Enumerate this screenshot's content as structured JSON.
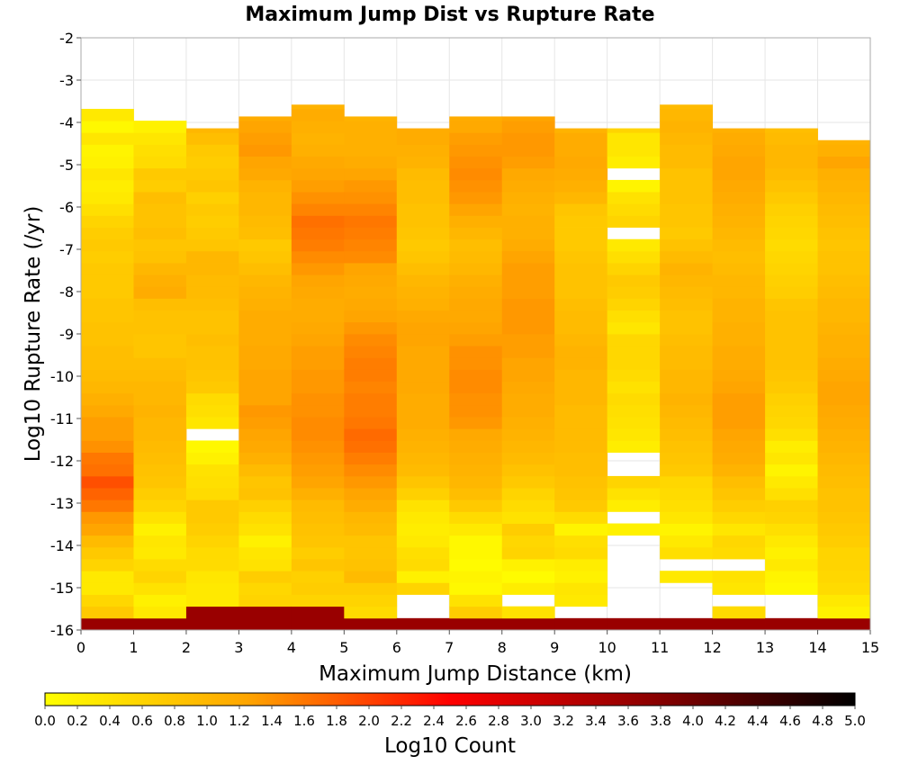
{
  "chart_data": {
    "type": "heatmap",
    "title": "Maximum Jump Dist vs Rupture Rate",
    "xlabel": "Maximum Jump Distance (km)",
    "ylabel": "Log10 Rupture Rate (/yr)",
    "colorbar_label": "Log10 Count",
    "xlim": [
      0,
      15
    ],
    "ylim": [
      -16,
      -2
    ],
    "x_ticks": [
      "0",
      "1",
      "2",
      "3",
      "4",
      "5",
      "6",
      "7",
      "8",
      "9",
      "10",
      "11",
      "12",
      "13",
      "14",
      "15"
    ],
    "y_ticks": [
      "-2",
      "-3",
      "-4",
      "-5",
      "-6",
      "-7",
      "-8",
      "-9",
      "-10",
      "-11",
      "-12",
      "-13",
      "-14",
      "-15",
      "-16"
    ],
    "color_range": [
      0.0,
      5.0
    ],
    "colorbar_ticks": [
      "0.0",
      "0.2",
      "0.4",
      "0.6",
      "0.8",
      "1.0",
      "1.2",
      "1.4",
      "1.6",
      "1.8",
      "2.0",
      "2.2",
      "2.4",
      "2.6",
      "2.8",
      "3.0",
      "3.2",
      "3.4",
      "3.6",
      "3.8",
      "4.0",
      "4.2",
      "4.4",
      "4.6",
      "4.8",
      "5.0"
    ],
    "colormap": [
      "#ffff00",
      "#ffa500",
      "#ff0000",
      "#8b0000",
      "#000000"
    ],
    "grid": true,
    "x_bin_width_km": 1,
    "y_bin_height_log10": 0.28,
    "y_bin_origin": -16,
    "n_y_bins": 50,
    "columns": [
      {
        "x": 0.5,
        "top": -2.62,
        "values": [
          3.6,
          0.75,
          0.55,
          0.3,
          0.3,
          0.6,
          0.75,
          0.95,
          1.25,
          1.35,
          1.6,
          1.75,
          1.9,
          1.65,
          1.6,
          1.4,
          1.3,
          1.3,
          1.2,
          1.1,
          1.0,
          0.95,
          0.9,
          0.9,
          0.85,
          0.85,
          0.8,
          0.8,
          0.75,
          0.75,
          0.75,
          0.7,
          0.75,
          0.7,
          0.6,
          0.45,
          0.3,
          0.25,
          0.35,
          0.2,
          0.15,
          0.35,
          0.1,
          0.3,
          0.0,
          0.0,
          0.0,
          0.0,
          0.0,
          0.0
        ]
      },
      {
        "x": 1.5,
        "top": -3.86,
        "values": [
          3.6,
          0.3,
          0.2,
          0.4,
          0.6,
          0.5,
          0.3,
          0.35,
          0.2,
          0.4,
          0.6,
          0.7,
          0.8,
          0.85,
          0.9,
          0.95,
          1.0,
          1.0,
          1.05,
          1.0,
          1.0,
          0.95,
          0.9,
          0.8,
          0.8,
          0.85,
          0.85,
          0.9,
          1.15,
          1.1,
          1.0,
          0.85,
          0.8,
          0.9,
          0.85,
          0.85,
          0.9,
          0.7,
          0.75,
          0.5,
          0.45,
          0.35,
          0.2,
          0.0,
          0.0,
          0.0,
          0.0,
          0.0,
          0.0,
          0.0
        ]
      },
      {
        "x": 2.5,
        "top": -4.14,
        "values": [
          3.6,
          3.6,
          0.3,
          0.3,
          0.35,
          0.5,
          0.5,
          0.6,
          0.7,
          0.75,
          0.75,
          0.5,
          0.45,
          0.4,
          0.2,
          0.1,
          0.0,
          0.35,
          0.45,
          0.5,
          0.75,
          0.8,
          0.85,
          0.85,
          0.9,
          0.85,
          0.85,
          0.9,
          0.95,
          0.95,
          1.0,
          1.0,
          0.8,
          0.75,
          0.7,
          0.75,
          0.65,
          0.8,
          0.75,
          0.7,
          0.75,
          0.9,
          1.0,
          1.05,
          1.1,
          1.25,
          1.15,
          0.9,
          0.9,
          0.0
        ]
      },
      {
        "x": 3.5,
        "top": -3.86,
        "values": [
          3.6,
          3.6,
          0.6,
          0.55,
          0.7,
          0.4,
          0.35,
          0.2,
          0.4,
          0.5,
          0.65,
          0.85,
          0.8,
          0.95,
          1.1,
          1.2,
          1.25,
          1.3,
          1.35,
          1.25,
          1.25,
          1.25,
          1.2,
          1.2,
          1.15,
          1.15,
          1.15,
          1.1,
          1.05,
          1.0,
          0.9,
          0.8,
          0.75,
          0.9,
          0.95,
          1.0,
          1.0,
          1.05,
          1.2,
          1.25,
          1.35,
          1.3,
          1.25,
          1.15,
          1.2,
          1.1,
          0.9,
          0.75,
          0.3,
          0.0
        ]
      },
      {
        "x": 4.5,
        "top": -3.58,
        "values": [
          3.6,
          3.6,
          0.6,
          0.7,
          0.65,
          0.8,
          0.7,
          0.8,
          0.85,
          0.9,
          0.95,
          1.1,
          1.25,
          1.3,
          1.35,
          1.4,
          1.45,
          1.45,
          1.4,
          1.4,
          1.35,
          1.35,
          1.3,
          1.3,
          1.25,
          1.2,
          1.15,
          1.15,
          1.2,
          1.25,
          1.35,
          1.45,
          1.55,
          1.6,
          1.65,
          1.5,
          1.4,
          1.3,
          1.25,
          1.2,
          1.1,
          1.05,
          1.1,
          1.15,
          1.05,
          1.0,
          0.85,
          0.65,
          0.1,
          0.05
        ]
      },
      {
        "x": 5.5,
        "top": -3.86,
        "values": [
          3.6,
          0.5,
          0.6,
          0.7,
          0.95,
          0.85,
          0.8,
          0.8,
          0.95,
          1.0,
          1.15,
          1.25,
          1.35,
          1.45,
          1.55,
          1.65,
          1.7,
          1.6,
          1.55,
          1.55,
          1.5,
          1.55,
          1.55,
          1.5,
          1.45,
          1.35,
          1.25,
          1.2,
          1.15,
          1.2,
          1.25,
          1.45,
          1.5,
          1.55,
          1.6,
          1.5,
          1.4,
          1.35,
          1.25,
          1.15,
          1.1,
          1.1,
          1.1,
          1.05,
          1.05,
          1.0,
          0.85,
          0.7,
          0.5,
          0.35
        ]
      },
      {
        "x": 6.5,
        "top": -4.14,
        "values": [
          3.6,
          0.0,
          0.0,
          0.6,
          0.2,
          0.5,
          0.45,
          0.3,
          0.25,
          0.3,
          0.4,
          0.65,
          0.8,
          0.95,
          1.0,
          1.05,
          1.1,
          1.15,
          1.15,
          1.15,
          1.2,
          1.2,
          1.2,
          1.2,
          1.25,
          1.25,
          1.2,
          1.1,
          1.05,
          1.0,
          0.9,
          0.8,
          0.75,
          0.8,
          0.85,
          0.85,
          0.9,
          0.9,
          0.95,
          1.05,
          1.1,
          1.15,
          1.15,
          1.1,
          1.1,
          1.05,
          0.95,
          0.95,
          0.85,
          0.75
        ]
      },
      {
        "x": 7.5,
        "top": -3.86,
        "values": [
          3.6,
          0.7,
          0.4,
          0.1,
          0.15,
          0.05,
          0.1,
          0.1,
          0.3,
          0.5,
          0.75,
          0.9,
          1.0,
          1.05,
          1.1,
          1.15,
          1.2,
          1.35,
          1.4,
          1.4,
          1.45,
          1.45,
          1.4,
          1.4,
          1.3,
          1.25,
          1.2,
          1.2,
          1.15,
          1.1,
          1.0,
          0.95,
          0.9,
          1.0,
          1.1,
          1.25,
          1.35,
          1.4,
          1.45,
          1.4,
          1.35,
          1.3,
          1.2,
          1.15,
          1.05,
          0.95,
          0.8,
          0.65,
          0.35,
          0.4
        ]
      },
      {
        "x": 8.5,
        "top": -3.86,
        "values": [
          3.6,
          0.4,
          0.0,
          0.25,
          0.05,
          0.2,
          0.6,
          0.55,
          0.7,
          0.4,
          0.5,
          0.6,
          0.75,
          0.85,
          0.95,
          1.0,
          1.05,
          1.1,
          1.15,
          1.15,
          1.2,
          1.25,
          1.25,
          1.3,
          1.3,
          1.35,
          1.35,
          1.35,
          1.3,
          1.3,
          1.3,
          1.25,
          1.15,
          1.1,
          1.1,
          1.05,
          1.1,
          1.15,
          1.2,
          1.3,
          1.35,
          1.35,
          1.3,
          1.25,
          1.15,
          1.05,
          0.9,
          0.5,
          0.35,
          0.3
        ]
      },
      {
        "x": 9.5,
        "top": -4.14,
        "values": [
          3.6,
          0.0,
          0.3,
          0.35,
          0.2,
          0.25,
          0.5,
          0.45,
          0.15,
          0.5,
          0.75,
          0.8,
          0.85,
          0.9,
          0.9,
          0.95,
          0.95,
          0.95,
          0.95,
          1.0,
          1.0,
          1.0,
          1.05,
          1.05,
          1.0,
          0.95,
          0.95,
          0.9,
          0.85,
          0.85,
          0.85,
          0.8,
          0.75,
          0.75,
          0.75,
          0.8,
          1.0,
          1.1,
          1.15,
          1.2,
          1.15,
          1.15,
          1.05,
          0.95,
          1.0,
          1.05,
          0.9,
          0.7,
          0.4,
          0.1
        ]
      },
      {
        "x": 10.5,
        "top": -4.14,
        "values": [
          3.6,
          0.0,
          0.0,
          0.0,
          0.0,
          0.0,
          0.0,
          0.0,
          0.2,
          0.0,
          0.25,
          0.4,
          0.6,
          0.0,
          0.0,
          0.25,
          0.35,
          0.4,
          0.45,
          0.5,
          0.4,
          0.5,
          0.55,
          0.55,
          0.55,
          0.35,
          0.45,
          0.6,
          0.7,
          0.75,
          0.6,
          0.45,
          0.3,
          0.0,
          0.6,
          0.5,
          0.4,
          0.15,
          0.0,
          0.25,
          0.35,
          0.35,
          0.6,
          0.8,
          0.9,
          0.7,
          0.6,
          0.55,
          0.5,
          0.4
        ]
      },
      {
        "x": 11.5,
        "top": -3.58,
        "values": [
          3.6,
          0.0,
          0.0,
          0.0,
          0.3,
          0.0,
          0.45,
          0.3,
          0.15,
          0.35,
          0.45,
          0.5,
          0.55,
          0.75,
          0.8,
          0.85,
          0.9,
          0.95,
          1.0,
          1.05,
          1.0,
          1.0,
          0.95,
          0.95,
          0.9,
          0.85,
          0.85,
          0.9,
          0.95,
          1.0,
          1.05,
          0.95,
          0.85,
          0.75,
          0.8,
          0.8,
          0.85,
          0.85,
          0.85,
          0.95,
          0.95,
          1.0,
          1.05,
          1.0,
          0.95,
          0.9,
          0.75,
          0.65,
          0.5,
          0.15
        ]
      },
      {
        "x": 12.5,
        "top": -4.14,
        "values": [
          3.6,
          0.5,
          0.0,
          0.35,
          0.4,
          0.0,
          0.5,
          0.55,
          0.35,
          0.55,
          0.7,
          0.8,
          0.9,
          1.05,
          1.15,
          1.2,
          1.25,
          1.3,
          1.3,
          1.3,
          1.25,
          1.2,
          1.15,
          1.15,
          1.1,
          1.1,
          1.05,
          1.05,
          1.0,
          1.0,
          0.95,
          0.9,
          0.95,
          1.0,
          1.05,
          1.1,
          1.15,
          1.2,
          1.25,
          1.25,
          1.2,
          1.15,
          1.1,
          1.05,
          1.0,
          0.95,
          0.9,
          0.8,
          0.65,
          0.55
        ]
      },
      {
        "x": 13.5,
        "top": -4.14,
        "values": [
          3.6,
          0.0,
          0.0,
          0.1,
          0.15,
          0.3,
          0.2,
          0.3,
          0.45,
          0.6,
          0.65,
          0.45,
          0.3,
          0.15,
          0.35,
          0.25,
          0.45,
          0.55,
          0.6,
          0.65,
          0.75,
          0.8,
          0.85,
          0.85,
          0.85,
          0.85,
          0.85,
          0.8,
          0.7,
          0.65,
          0.6,
          0.55,
          0.5,
          0.55,
          0.6,
          0.65,
          0.75,
          0.85,
          0.95,
          1.0,
          1.0,
          0.95,
          0.9,
          0.8,
          0.75,
          0.7,
          0.65,
          0.55,
          0.4,
          0.3
        ]
      },
      {
        "x": 14.5,
        "top": -4.42,
        "values": [
          3.6,
          0.2,
          0.3,
          0.5,
          0.55,
          0.6,
          0.6,
          0.7,
          0.75,
          0.8,
          0.85,
          0.85,
          0.9,
          0.95,
          1.0,
          1.05,
          1.1,
          1.15,
          1.2,
          1.25,
          1.25,
          1.2,
          1.15,
          1.1,
          1.1,
          1.05,
          1.0,
          1.0,
          0.95,
          0.9,
          0.85,
          0.85,
          0.8,
          0.85,
          0.9,
          0.95,
          1.0,
          1.05,
          1.1,
          1.25,
          1.1,
          1.05,
          1.0,
          0.9,
          0.85,
          0.7,
          0.6,
          0.5,
          0.45,
          0.45
        ]
      }
    ]
  }
}
